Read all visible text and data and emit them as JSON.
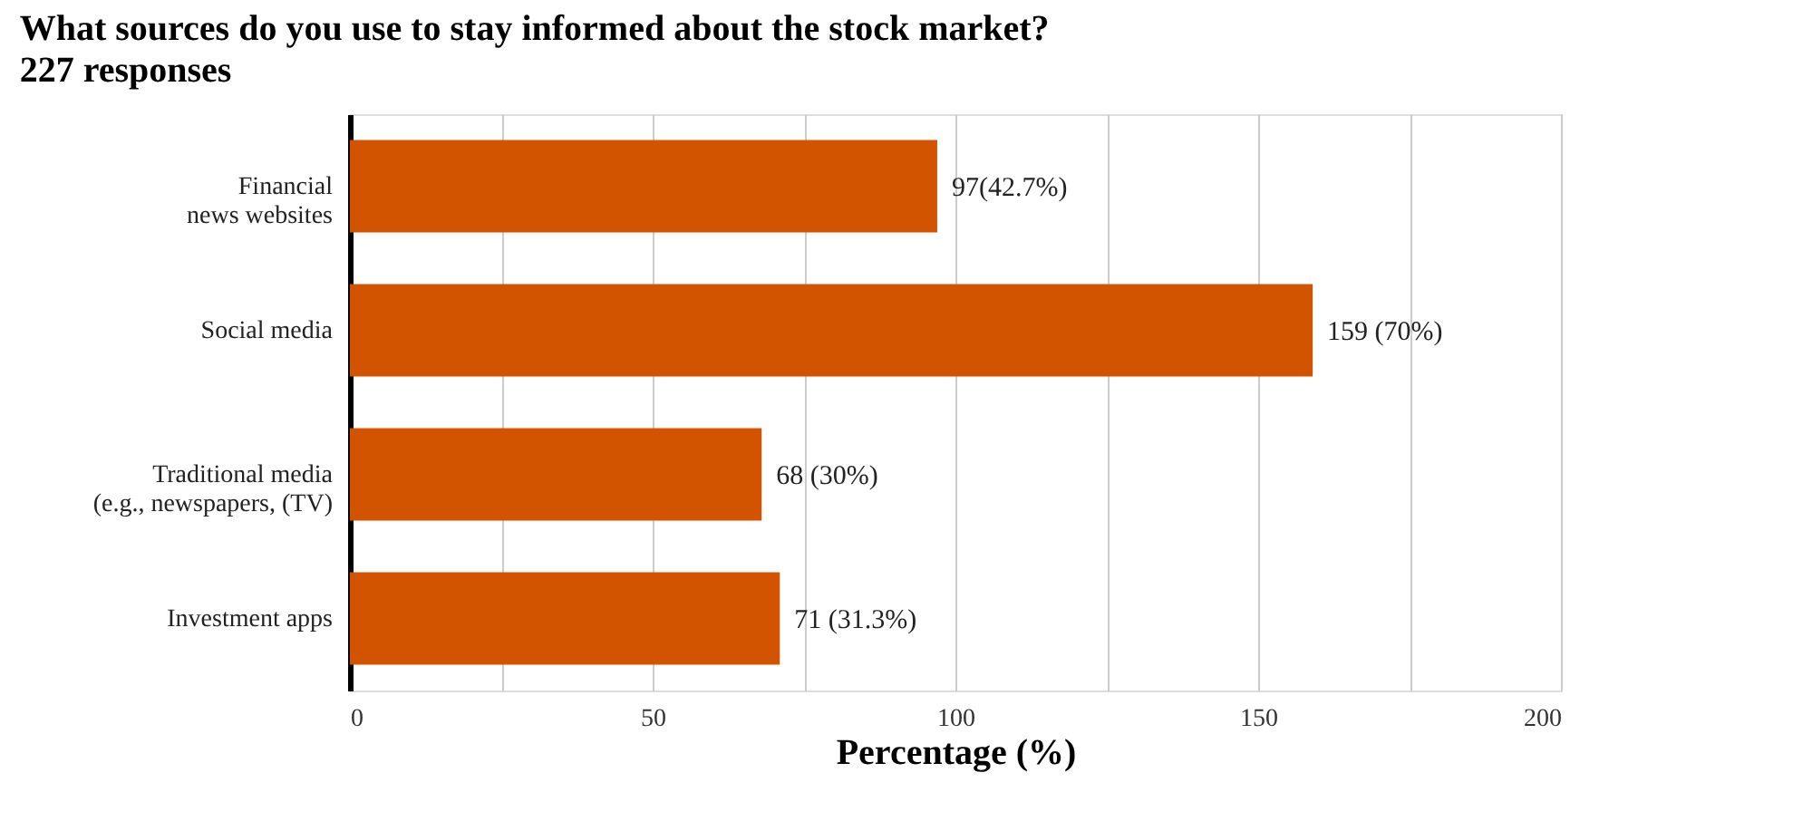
{
  "chart_data": {
    "type": "bar",
    "orientation": "horizontal",
    "title": "What sources do you use to stay informed about the stock market?",
    "subtitle": "227 responses",
    "xlabel": "Percentage (%)",
    "categories": [
      "Financial\nnews websites",
      "Social media",
      "Traditional media\n(e.g., newspapers, (TV)",
      "Investment apps"
    ],
    "values": [
      97,
      159,
      68,
      71
    ],
    "value_labels": [
      "97(42.7%)",
      "159 (70%)",
      "68 (30%)",
      "71 (31.3%)"
    ],
    "color": "#d35400",
    "xlim": [
      0,
      200
    ],
    "xticks": [
      0,
      {
        "value": 25,
        "label": null
      },
      50,
      {
        "value": 75,
        "label": null
      },
      100,
      {
        "value": 125,
        "label": null
      },
      150,
      {
        "value": 175,
        "label": null
      },
      200
    ],
    "grid": "x"
  }
}
